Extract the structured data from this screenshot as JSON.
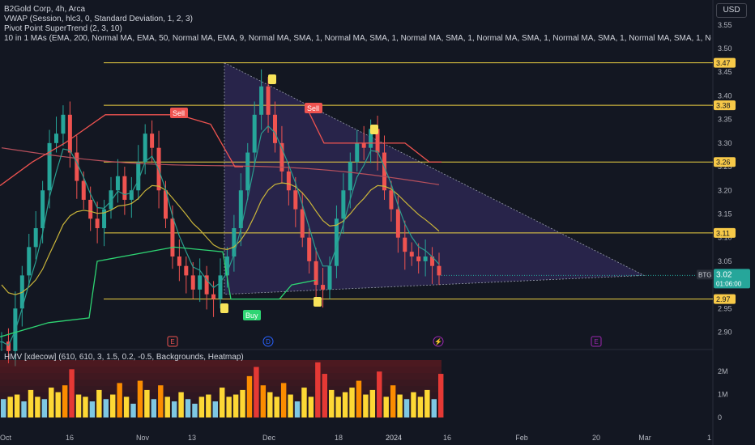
{
  "header": {
    "title": "B2Gold Corp, 4h, Arca",
    "indicator_vwap": "VWAP (Session, hlc3, 0, Standard Deviation, 1, 2, 3)",
    "indicator_supertrend": "Pivot Point SuperTrend (2, 3, 10)",
    "indicator_mas": "10 in 1 MAs (EMA, 200, Normal MA, EMA, 50, Normal MA, EMA, 9, Normal MA, SMA, 1, Normal MA, SMA, 1, Normal MA, SMA, 1, Normal MA, SMA, 1, Normal MA, SMA, 1, Normal MA, SMA, 1, Normal MA, SMA, 1, Normal MA"
  },
  "currency_button": "USD",
  "volume_pane": {
    "title": "HMV [xdecow] (610, 610, 3, 1.5, 0.2, -0.5, Backgrounds, Heatmap)",
    "ticks": [
      "2M",
      "1M",
      "0"
    ]
  },
  "colors": {
    "background": "#131722",
    "candle_up": "#26a69a",
    "candle_down": "#ef5350",
    "level_line": "#f0d343",
    "supertrend_down": "#ef5350",
    "supertrend_up": "#2ed573",
    "triangle_fill": "#3b2f6b",
    "ema200": "#b7505c",
    "ema50": "#c9b43a",
    "ema9": "#2a9d8f"
  },
  "chart_data": {
    "type": "candlestick",
    "symbol": "BTG",
    "timeframe": "4h",
    "last_price": "3.02",
    "countdown": "01:06:00",
    "x_tick_labels": [
      "Oct",
      "16",
      "Nov",
      "13",
      "Dec",
      "18",
      "2024",
      "16",
      "Feb",
      "20",
      "Mar",
      "1"
    ],
    "y_tick_labels": [
      "3.55",
      "3.50",
      "3.45",
      "3.40",
      "3.35",
      "3.30",
      "3.25",
      "3.20",
      "3.15",
      "3.10",
      "3.05",
      "2.95",
      "2.90"
    ],
    "ylim": [
      2.87,
      3.56
    ],
    "horizontal_levels": [
      3.47,
      3.38,
      3.26,
      3.11,
      2.97
    ],
    "level_labels": [
      "3.47",
      "3.38",
      "3.26",
      "3.11",
      "2.97"
    ],
    "signals": [
      {
        "label": "Sell",
        "type": "sell"
      },
      {
        "label": "Sell",
        "type": "sell"
      },
      {
        "label": "Buy",
        "type": "buy"
      }
    ],
    "event_markers": [
      "E",
      "D",
      "E"
    ],
    "close_series": [
      2.88,
      2.86,
      2.95,
      3.02,
      3.08,
      3.12,
      3.2,
      3.3,
      3.32,
      3.36,
      3.28,
      3.22,
      3.18,
      3.14,
      3.12,
      3.16,
      3.2,
      3.23,
      3.18,
      3.2,
      3.26,
      3.32,
      3.29,
      3.2,
      3.14,
      3.06,
      3.04,
      3.02,
      2.99,
      3.02,
      2.98,
      2.97,
      3.02,
      3.06,
      3.12,
      3.2,
      3.28,
      3.36,
      3.42,
      3.36,
      3.3,
      3.24,
      3.2,
      3.16,
      3.1,
      3.05,
      3.0,
      2.99,
      3.04,
      3.14,
      3.2,
      3.26,
      3.3,
      3.29,
      3.33,
      3.28,
      3.2,
      3.16,
      3.1,
      3.07,
      3.06,
      3.05,
      3.06,
      3.04,
      3.02
    ],
    "volume_millions": [
      0.8,
      0.9,
      1.0,
      0.7,
      1.2,
      0.9,
      0.8,
      1.3,
      1.1,
      1.4,
      2.1,
      1.0,
      0.9,
      0.7,
      1.2,
      0.8,
      1.0,
      1.5,
      0.9,
      0.6,
      1.6,
      1.2,
      0.8,
      1.4,
      0.9,
      0.7,
      1.1,
      0.8,
      0.6,
      0.9,
      1.0,
      0.7,
      1.3,
      0.9,
      1.0,
      1.2,
      1.8,
      2.2,
      1.4,
      1.1,
      0.9,
      1.5,
      1.0,
      0.7,
      1.3,
      0.9,
      2.4,
      1.9,
      1.2,
      0.9,
      1.1,
      1.3,
      1.6,
      1.0,
      1.2,
      2.0,
      0.9,
      1.4,
      1.0,
      0.8,
      1.1,
      0.9,
      1.2,
      0.8,
      1.9
    ]
  }
}
